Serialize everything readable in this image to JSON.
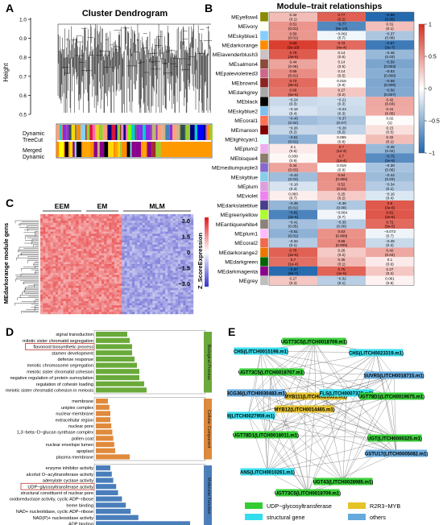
{
  "panels": {
    "A": "A",
    "B": "B",
    "C": "C",
    "D": "D",
    "E": "E"
  },
  "A": {
    "title": "Cluster Dendrogram",
    "ylabel": "Height",
    "yticks": [
      "1.0",
      "0.9",
      "0.8",
      "0.7",
      "0.6",
      "0.5"
    ],
    "row1": [
      "Dynamic",
      "TreeCut"
    ],
    "row2": [
      "Merged",
      "Dynamic"
    ]
  },
  "B": {
    "title": "Module–trait relationships",
    "columns": [
      "EEM",
      "EM",
      "MLM"
    ],
    "colorbar_ticks": [
      "1",
      "0.5",
      "0",
      "−0.5",
      "−1"
    ],
    "colors": {
      "pos": "#d7301f",
      "neg": "#2166ac",
      "zero": "#ffffff"
    },
    "chart_data": {
      "type": "heatmap",
      "x": [
        "EEM",
        "EM",
        "MLM"
      ],
      "modules": [
        {
          "name": "MEyellow4",
          "color": "#8b8b00",
          "v": [
            "0.32",
            "0.77",
            "−0.98"
          ],
          "p": [
            "(0.1)",
            "(0.2)",
            "(0.05)"
          ]
        },
        {
          "name": "MEivory",
          "color": "#fffff0",
          "v": [
            "0.51",
            "−0.77",
            "0.31"
          ],
          "p": [
            "(0.01)",
            "(9e-10)",
            "(0.1)"
          ]
        },
        {
          "name": "MEskyblue1",
          "color": "#87ceff",
          "v": [
            "0.50",
            "−0.062",
            "−0.37"
          ],
          "p": [
            "(0.01)",
            "(0.7)",
            "(0.08)"
          ]
        },
        {
          "name": "MEdarkorange",
          "color": "#ff8c00",
          "v": [
            "0.93",
            "0.72",
            "−0.87"
          ],
          "p": [
            "(3e-10)",
            "(4e-4)",
            "(3e-7)"
          ]
        },
        {
          "name": "MElavenderblush3",
          "color": "#cdc1c5",
          "v": [
            "0.79",
            "0.14",
            "−0.46"
          ],
          "p": [
            "(4e-5)",
            "(0.5)",
            "(0.03)"
          ]
        },
        {
          "name": "MEsalmon4",
          "color": "#8b4c39",
          "v": [
            "0.44",
            "0.14",
            "−0.59"
          ],
          "p": [
            "(0.06)",
            "(0.5)",
            "(0.003)"
          ]
        },
        {
          "name": "MEpalevioletred3",
          "color": "#cd6889",
          "v": [
            "0.55",
            "0.14",
            "−0.53"
          ],
          "p": [
            "(0.01)",
            "(0.5)",
            "(0.008)"
          ]
        },
        {
          "name": "MEbrown4",
          "color": "#8b2323",
          "v": [
            "0.72",
            "0.016",
            "−0.58"
          ],
          "p": [
            "(8e-5)",
            "(0.9)",
            "(0.006)"
          ]
        },
        {
          "name": "MEdarkgrey",
          "color": "#a9a9a9",
          "v": [
            "0.66",
            "0.27",
            "−0.56"
          ],
          "p": [
            "(5e-5)",
            "(0.2)",
            "(0.007)"
          ]
        },
        {
          "name": "MEblack",
          "color": "#000000",
          "v": [
            "−0.24",
            "−0.21",
            "0.42"
          ],
          "p": [
            "(0.3)",
            "(0.3)",
            "(0.04)"
          ]
        },
        {
          "name": "MEskyblue2",
          "color": "#7ec0ee",
          "v": [
            "−0.18",
            "−0.24",
            "0.41"
          ],
          "p": [
            "(0.4)",
            "(0.3)",
            "(0.05)"
          ]
        },
        {
          "name": "MEcoral1",
          "color": "#ff7256",
          "v": [
            "−0.43",
            "−0.37",
            "0.02"
          ],
          "p": [
            "(0.02)",
            "(0.07)",
            "(1)"
          ]
        },
        {
          "name": "MEmaroon",
          "color": "#800000",
          "v": [
            "−0.26",
            "−0.28",
            "0.15"
          ],
          "p": [
            "(0.2)",
            "(0.2)",
            "(0.5)"
          ]
        },
        {
          "name": "MElightcyan1",
          "color": "#e0ffff",
          "v": [
            "−0.51",
            "0.055",
            "0.32"
          ],
          "p": [
            "(0.01)",
            "(0.8)",
            "(0.1)"
          ]
        },
        {
          "name": "MEplum2",
          "color": "#eeaeee",
          "v": [
            "0.1",
            "0.7",
            "−0.46"
          ],
          "p": [
            "(0.6)",
            "(1e-3)",
            "(0.02)"
          ]
        },
        {
          "name": "MEbisque4",
          "color": "#8b7d6b",
          "v": [
            "0.039",
            "0.7",
            "−0.75"
          ],
          "p": [
            "(0.9)",
            "(1e-4)",
            "(2e-5)"
          ]
        },
        {
          "name": "MEmediumpurple3",
          "color": "#8968cd",
          "v": [
            "0.44",
            "0.019",
            "−0.39"
          ],
          "p": [
            "(0.03)",
            "(0.9)",
            "(0.06)"
          ]
        },
        {
          "name": "MEskyblue",
          "color": "#87ceeb",
          "v": [
            "−0.43",
            "0.54",
            "−0.44"
          ],
          "p": [
            "(0.03)",
            "(0.006)",
            "(0.03)"
          ]
        },
        {
          "name": "MEplum",
          "color": "#dda0dd",
          "v": [
            "−0.18",
            "0.52",
            "−0.34"
          ],
          "p": [
            "(0.4)",
            "(0.01)",
            "(0.1)"
          ]
        },
        {
          "name": "MEviolet",
          "color": "#ee82ee",
          "v": [
            "0.083",
            "0.25",
            "−0.16"
          ],
          "p": [
            "(0.7)",
            "(0.2)",
            "(0.4)"
          ]
        },
        {
          "name": "MEdarkslateblue",
          "color": "#483d8b",
          "v": [
            "−0.48",
            "−0.36",
            "0.8"
          ],
          "p": [
            "(0.01)",
            "(0.08)",
            "(3e-6)"
          ]
        },
        {
          "name": "MEgreenyellow",
          "color": "#adff2f",
          "v": [
            "−0.81",
            "−0.064",
            "0.81"
          ],
          "p": [
            "(2e-6)",
            "(0.7)",
            "(2e-6)"
          ]
        },
        {
          "name": "MEantiquewhite4",
          "color": "#8b8378",
          "v": [
            "−0.41",
            "−0.35",
            "0.72"
          ],
          "p": [
            "(0.05)",
            "(0.09)",
            "(9e-5)"
          ]
        },
        {
          "name": "MEplum1",
          "color": "#ffbbff",
          "v": [
            "−0.51",
            "0.53",
            "−0.073"
          ],
          "p": [
            "(0.01)",
            "(0.008)",
            "(0.7)"
          ]
        },
        {
          "name": "MEcoral2",
          "color": "#ee6a50",
          "v": [
            "−0.34",
            "0.56",
            "−0.25"
          ],
          "p": [
            "(0.1)",
            "(0.005)",
            "(0.2)"
          ]
        },
        {
          "name": "MEdarkorange2",
          "color": "#ee7600",
          "v": [
            "0.76",
            "0.26",
            "0.42"
          ],
          "p": [
            "(2e-5)",
            "(0.2)",
            "(0.04)"
          ]
        },
        {
          "name": "MEdarkgreen",
          "color": "#006400",
          "v": [
            "0.7",
            "0.35",
            "0.1"
          ],
          "p": [
            "(1e-4)",
            "(0.1)",
            "(0.6)"
          ]
        },
        {
          "name": "MEdarkmagenta",
          "color": "#8b008b",
          "v": [
            "−0.97",
            "0.75",
            "0.27"
          ],
          "p": [
            "(9e-7)",
            "(4e-5)",
            "(0.2)"
          ]
        },
        {
          "name": "MEgrey",
          "color": "#bebebe",
          "v": [
            "0.27",
            "−0.32",
            "0.061"
          ],
          "p": [
            "(0.2)",
            "(0.1)",
            "(0.8)"
          ]
        }
      ]
    }
  },
  "C": {
    "groups": [
      "EEM",
      "EM",
      "MLM"
    ],
    "ylabel": "MEdarkorange module gens",
    "legend_title": "Z_ScoreExpression",
    "legend_ticks": [
      "3.0",
      "1.5",
      "0",
      "−1.5",
      "−3.0"
    ]
  },
  "D": {
    "xlabel": "−lg(p)−value",
    "xticks": [
      "0",
      "5",
      "10",
      "15",
      "20"
    ],
    "chart_data": {
      "type": "bar",
      "groups": [
        {
          "name": "Biological Process",
          "color": "#6aaa3a",
          "terms": [
            {
              "label": "signal transduction",
              "value": 6.5
            },
            {
              "label": "mitotic sister chromatid segregation",
              "value": 7
            },
            {
              "label": "flavonoid biosynthetic process",
              "value": 7.5,
              "highlight": true
            },
            {
              "label": "stamen development",
              "value": 7.5
            },
            {
              "label": "defense response",
              "value": 8
            },
            {
              "label": "meiotic chromosome segregation",
              "value": 8.5
            },
            {
              "label": "meiotic sister chromatid cohesion",
              "value": 9
            },
            {
              "label": "negative regulation of protein sumoylation",
              "value": 9
            },
            {
              "label": "regulation of cohesin loading",
              "value": 10
            },
            {
              "label": "meiotic sister chromatid cohesion in meiosis",
              "value": 10.5
            }
          ]
        },
        {
          "name": "Cellular Component",
          "color": "#e08a3c",
          "terms": [
            {
              "label": "membrane",
              "value": 2.5
            },
            {
              "label": "uniplex complex",
              "value": 2.8
            },
            {
              "label": "nuclear membrane",
              "value": 3
            },
            {
              "label": "extracellular region",
              "value": 3
            },
            {
              "label": "nuclear pore",
              "value": 3.2
            },
            {
              "label": "1,3−beta−D−glucan synthase complex",
              "value": 3.4
            },
            {
              "label": "pollen coat",
              "value": 3.6
            },
            {
              "label": "nuclear envelope lumen",
              "value": 3.8
            },
            {
              "label": "apoplast",
              "value": 4
            },
            {
              "label": "plasma membrane",
              "value": 7
            }
          ]
        },
        {
          "name": "Molecular Function",
          "color": "#4a7ebb",
          "terms": [
            {
              "label": "enzyme inhibitor activity",
              "value": 3
            },
            {
              "label": "alcohol O−acyltransferase activity",
              "value": 3.3
            },
            {
              "label": "adenylate cyclase activity",
              "value": 3.6
            },
            {
              "label": "UDP−glycosyltransferase activity",
              "value": 4.2,
              "highlight": true
            },
            {
              "label": "structural constituent of nuclear pore",
              "value": 4.6
            },
            {
              "label": "oxidoreductase activity, cyclic ADP−ribose",
              "value": 5.4
            },
            {
              "label": "heme binding",
              "value": 6.2
            },
            {
              "label": "NAD+ nucleotidase, cyclic ADP−ribose",
              "value": 7.2
            },
            {
              "label": "NAD(P)+ nucleosidase activity",
              "value": 8.8
            },
            {
              "label": "ADP binding",
              "value": 19.5
            }
          ]
        }
      ]
    }
  },
  "E": {
    "nodes": [
      {
        "label": "UGT73C5(LITCH0018709.m1)",
        "type": "ugt"
      },
      {
        "label": "CHS(LITCH0015198.m1)",
        "type": "struct"
      },
      {
        "label": "CHS(LITCH0023319.m1)",
        "type": "struct"
      },
      {
        "label": "UGT73C5(LITCH0018707.m1)",
        "type": "ugt"
      },
      {
        "label": "SUVR5(LITCH0018715.m1)",
        "type": "other"
      },
      {
        "label": "MYB111(LITCH0026531.m1)",
        "type": "myb"
      },
      {
        "label": "ABCG36(LITCH0030483.m1)",
        "type": "other"
      },
      {
        "label": "FLS(LITCH0007338.m1)",
        "type": "struct"
      },
      {
        "label": "UGT78D1(LITCH0019675.m1)",
        "type": "ugt"
      },
      {
        "label": "CHI(LITCH0027959.m1)",
        "type": "struct"
      },
      {
        "label": "MYB12(LITCH0014465.m1)",
        "type": "myb"
      },
      {
        "label": "UGT78D1(LITCH0018011.m1)",
        "type": "ugt"
      },
      {
        "label": "UGT(LITCH0000325.m1)",
        "type": "ugt"
      },
      {
        "label": "GSTU17(LITCH0005082.m1)",
        "type": "other"
      },
      {
        "label": "ANS(LITCH0010261.m1)",
        "type": "struct"
      },
      {
        "label": "UGT43(LITCH0028985.m1)",
        "type": "ugt"
      },
      {
        "label": "UGT73C5(LITCH0018709.m1)",
        "type": "ugt"
      }
    ],
    "legend": [
      {
        "label": "UDP−glycosyltransferase",
        "type": "ugt"
      },
      {
        "label": "R2R3−MYB",
        "type": "myb"
      },
      {
        "label": "structural gene",
        "type": "struct"
      },
      {
        "label": "others",
        "type": "other"
      }
    ],
    "type_colors": {
      "ugt": "#33cc33",
      "myb": "#e6c229",
      "struct": "#33ddee",
      "other": "#66aadd"
    }
  }
}
